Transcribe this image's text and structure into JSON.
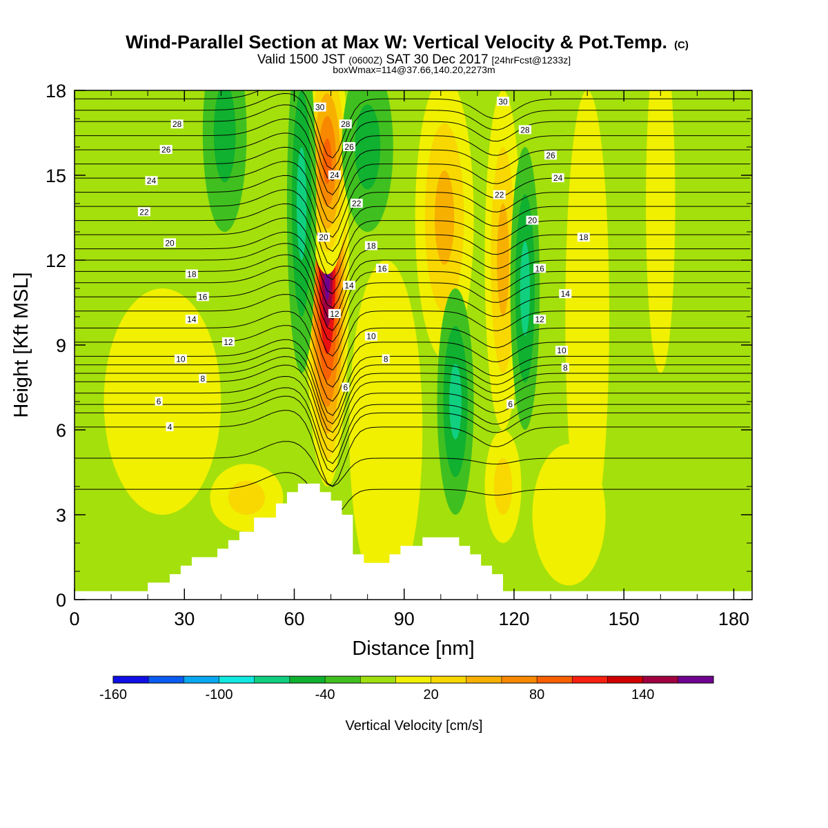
{
  "header": {
    "title": "Wind-Parallel Section at Max W: Vertical Velocity & Pot.Temp.",
    "copyright": "(C)",
    "valid_pre": "Valid 1500 JST",
    "valid_utc": "(0600Z)",
    "valid_post": "SAT 30 Dec 2017",
    "forecast": "[24hrFcst@1233z]",
    "box_info": "boxWmax=114@37.66,140.20,2273m"
  },
  "chart_data": {
    "type": "heatmap",
    "xlabel": "Distance [nm]",
    "ylabel": "Height [Kft MSL]",
    "xlim": [
      0,
      185
    ],
    "ylim": [
      0,
      18
    ],
    "x_ticks": [
      "0",
      "30",
      "60",
      "90",
      "120",
      "150",
      "180"
    ],
    "y_ticks": [
      "0",
      "3",
      "6",
      "9",
      "12",
      "15",
      "18"
    ],
    "colorbar": {
      "label": "Vertical Velocity [cm/s]",
      "ticks": [
        "-160",
        "-100",
        "-40",
        "20",
        "80",
        "140"
      ],
      "colors": [
        "#1010e6",
        "#0a5cf0",
        "#0aa8f0",
        "#10e8e0",
        "#10d080",
        "#10b030",
        "#40c020",
        "#a0e010",
        "#f0f000",
        "#f8d800",
        "#f8b000",
        "#f88800",
        "#f86000",
        "#f82010",
        "#d00000",
        "#a00040",
        "#700090"
      ]
    },
    "background_color": "#a4e00c",
    "updraft_band_colors": [
      "#f0f000",
      "#f8d800",
      "#f8b000",
      "#f88800",
      "#f86000",
      "#e81010",
      "#a00040",
      "#700090"
    ],
    "downdraft_band_colors": [
      "#40c020",
      "#10b030",
      "#10d080"
    ],
    "terrain_kft": [
      [
        0,
        0.3
      ],
      [
        20,
        0.3
      ],
      [
        20,
        0.6
      ],
      [
        26,
        0.6
      ],
      [
        26,
        0.9
      ],
      [
        29,
        0.9
      ],
      [
        29,
        1.2
      ],
      [
        32,
        1.2
      ],
      [
        32,
        1.5
      ],
      [
        39,
        1.5
      ],
      [
        39,
        1.8
      ],
      [
        42,
        1.8
      ],
      [
        42,
        2.1
      ],
      [
        45,
        2.1
      ],
      [
        45,
        2.4
      ],
      [
        49,
        2.4
      ],
      [
        49,
        2.9
      ],
      [
        55,
        2.9
      ],
      [
        55,
        3.4
      ],
      [
        58,
        3.4
      ],
      [
        58,
        3.8
      ],
      [
        61,
        3.8
      ],
      [
        61,
        4.1
      ],
      [
        67,
        4.1
      ],
      [
        67,
        3.8
      ],
      [
        70,
        3.8
      ],
      [
        70,
        3.5
      ],
      [
        73,
        3.5
      ],
      [
        73,
        3.0
      ],
      [
        76,
        3.0
      ],
      [
        76,
        1.6
      ],
      [
        79,
        1.6
      ],
      [
        79,
        1.3
      ],
      [
        86,
        1.3
      ],
      [
        86,
        1.6
      ],
      [
        89,
        1.6
      ],
      [
        89,
        1.9
      ],
      [
        95,
        1.9
      ],
      [
        95,
        2.2
      ],
      [
        105,
        2.2
      ],
      [
        105,
        1.9
      ],
      [
        108,
        1.9
      ],
      [
        108,
        1.6
      ],
      [
        111,
        1.6
      ],
      [
        111,
        1.2
      ],
      [
        114,
        1.2
      ],
      [
        114,
        0.9
      ],
      [
        117,
        0.9
      ],
      [
        117,
        0.3
      ],
      [
        185,
        0.3
      ]
    ],
    "updrafts": [
      {
        "x": 69,
        "y": 11.5,
        "wx": 6,
        "wy": 7.5,
        "w": 114
      },
      {
        "x": 69,
        "y": 15.5,
        "wx": 6,
        "wy": 4,
        "w": 70
      },
      {
        "x": 47,
        "y": 3.6,
        "wx": 10,
        "wy": 1.2,
        "w": 30
      },
      {
        "x": 101,
        "y": 13.5,
        "wx": 8,
        "wy": 5,
        "w": 35
      },
      {
        "x": 117,
        "y": 12.0,
        "wx": 5,
        "wy": 6,
        "w": 40
      },
      {
        "x": 117,
        "y": 4.0,
        "wx": 5,
        "wy": 2,
        "w": 30
      },
      {
        "x": 24,
        "y": 7.0,
        "wx": 16,
        "wy": 4,
        "w": 12
      },
      {
        "x": 85,
        "y": 6.0,
        "wx": 10,
        "wy": 6,
        "w": 12
      },
      {
        "x": 140,
        "y": 10.0,
        "wx": 6,
        "wy": 8,
        "w": 12
      },
      {
        "x": 160,
        "y": 14.0,
        "wx": 4,
        "wy": 6,
        "w": 10
      },
      {
        "x": 135,
        "y": 3.0,
        "wx": 10,
        "wy": 2.5,
        "w": 14
      }
    ],
    "downdrafts": [
      {
        "x": 62,
        "y": 14.0,
        "wx": 4,
        "wy": 6,
        "w": -60
      },
      {
        "x": 123,
        "y": 11.0,
        "wx": 4,
        "wy": 5,
        "w": -50
      },
      {
        "x": 104,
        "y": 7.0,
        "wx": 5,
        "wy": 4,
        "w": -45
      },
      {
        "x": 80,
        "y": 16.0,
        "wx": 7,
        "wy": 3,
        "w": -30
      },
      {
        "x": 41,
        "y": 16.5,
        "wx": 6,
        "wy": 3.5,
        "w": -25
      }
    ],
    "theta_lines": [
      [
        0,
        3.9
      ],
      [
        0,
        5.0
      ],
      [
        0,
        6.1
      ],
      [
        0,
        6.6
      ],
      [
        0,
        6.9
      ],
      [
        0,
        7.3
      ],
      [
        0,
        7.7
      ],
      [
        0,
        8.0
      ],
      [
        0,
        8.3
      ],
      [
        0,
        8.6
      ],
      [
        0,
        9.1
      ],
      [
        0,
        9.6
      ],
      [
        0,
        10.2
      ],
      [
        0,
        10.7
      ],
      [
        0,
        11.2
      ],
      [
        0,
        11.6
      ],
      [
        0,
        12.0
      ],
      [
        0,
        12.4
      ],
      [
        0,
        12.9
      ],
      [
        0,
        13.4
      ],
      [
        0,
        13.9
      ],
      [
        0,
        14.4
      ],
      [
        0,
        14.9
      ],
      [
        0,
        15.4
      ],
      [
        0,
        15.9
      ],
      [
        0,
        16.4
      ],
      [
        0,
        16.9
      ],
      [
        0,
        17.3
      ],
      [
        0,
        17.7
      ]
    ],
    "contour_labels": [
      {
        "text": "4",
        "x": 26,
        "y": 6.1
      },
      {
        "text": "6",
        "x": 23,
        "y": 7.0
      },
      {
        "text": "8",
        "x": 35,
        "y": 7.8
      },
      {
        "text": "10",
        "x": 29,
        "y": 8.5
      },
      {
        "text": "12",
        "x": 42,
        "y": 9.1
      },
      {
        "text": "14",
        "x": 32,
        "y": 9.9
      },
      {
        "text": "16",
        "x": 35,
        "y": 10.7
      },
      {
        "text": "18",
        "x": 32,
        "y": 11.5
      },
      {
        "text": "20",
        "x": 26,
        "y": 12.6
      },
      {
        "text": "22",
        "x": 19,
        "y": 13.7
      },
      {
        "text": "24",
        "x": 21,
        "y": 14.8
      },
      {
        "text": "26",
        "x": 25,
        "y": 15.9
      },
      {
        "text": "28",
        "x": 28,
        "y": 16.8
      },
      {
        "text": "30",
        "x": 67,
        "y": 17.4
      },
      {
        "text": "28",
        "x": 74,
        "y": 16.8
      },
      {
        "text": "26",
        "x": 75,
        "y": 16.0
      },
      {
        "text": "24",
        "x": 71,
        "y": 15.0
      },
      {
        "text": "22",
        "x": 77,
        "y": 14.0
      },
      {
        "text": "20",
        "x": 68,
        "y": 12.8
      },
      {
        "text": "18",
        "x": 81,
        "y": 12.5
      },
      {
        "text": "16",
        "x": 84,
        "y": 11.7
      },
      {
        "text": "14",
        "x": 75,
        "y": 11.1
      },
      {
        "text": "12",
        "x": 71,
        "y": 10.1
      },
      {
        "text": "10",
        "x": 81,
        "y": 9.3
      },
      {
        "text": "8",
        "x": 85,
        "y": 8.5
      },
      {
        "text": "6",
        "x": 74,
        "y": 7.5
      },
      {
        "text": "30",
        "x": 117,
        "y": 17.6
      },
      {
        "text": "28",
        "x": 123,
        "y": 16.6
      },
      {
        "text": "26",
        "x": 130,
        "y": 15.7
      },
      {
        "text": "24",
        "x": 132,
        "y": 14.9
      },
      {
        "text": "22",
        "x": 116,
        "y": 14.3
      },
      {
        "text": "20",
        "x": 125,
        "y": 13.4
      },
      {
        "text": "18",
        "x": 139,
        "y": 12.8
      },
      {
        "text": "16",
        "x": 127,
        "y": 11.7
      },
      {
        "text": "14",
        "x": 134,
        "y": 10.8
      },
      {
        "text": "12",
        "x": 127,
        "y": 9.9
      },
      {
        "text": "10",
        "x": 133,
        "y": 8.8
      },
      {
        "text": "8",
        "x": 134,
        "y": 8.2
      },
      {
        "text": "6",
        "x": 119,
        "y": 6.9
      }
    ]
  }
}
